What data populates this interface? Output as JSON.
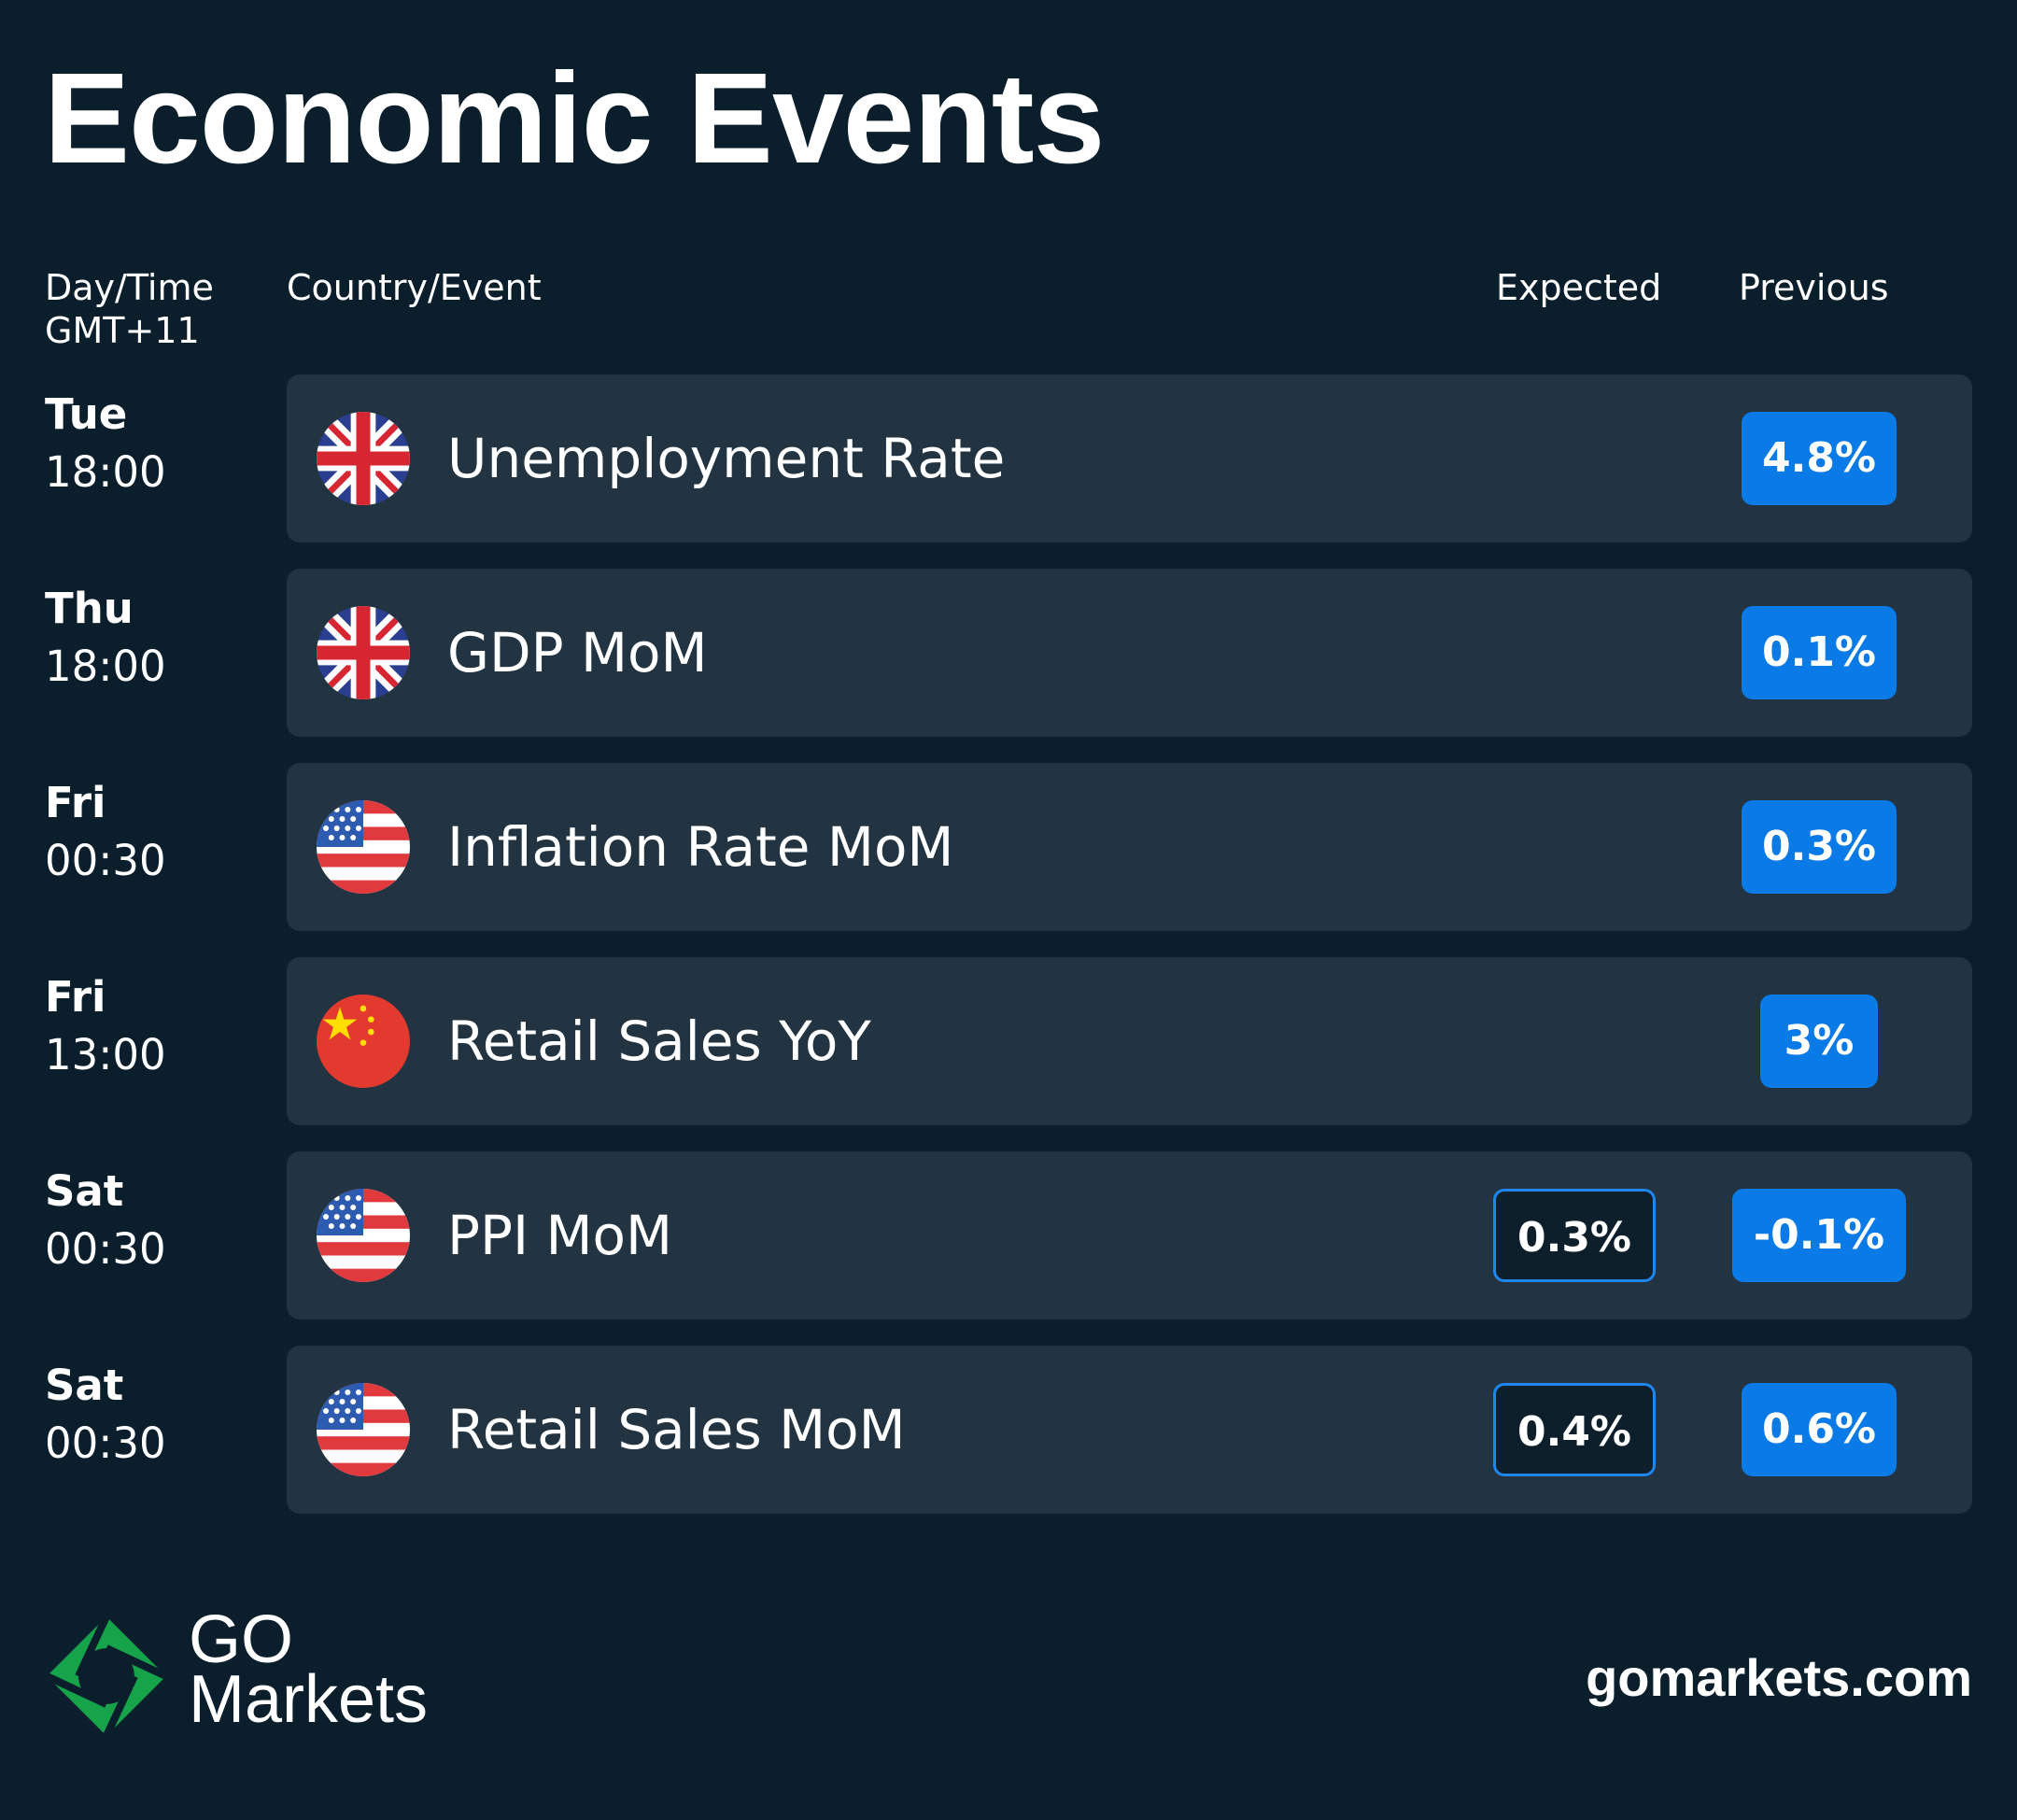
{
  "title": "Economic Events",
  "columns": {
    "day_time": "Day/Time",
    "timezone": "GMT+11",
    "country_event": "Country/Event",
    "expected": "Expected",
    "previous": "Previous"
  },
  "events": [
    {
      "day": "Tue",
      "time": "18:00",
      "flag": "uk-flag-icon",
      "event": "Unemployment Rate",
      "expected": "",
      "previous": "4.8%"
    },
    {
      "day": "Thu",
      "time": "18:00",
      "flag": "uk-flag-icon",
      "event": "GDP MoM",
      "expected": "",
      "previous": "0.1%"
    },
    {
      "day": "Fri",
      "time": "00:30",
      "flag": "us-flag-icon",
      "event": "Inflation Rate MoM",
      "expected": "",
      "previous": "0.3%"
    },
    {
      "day": "Fri",
      "time": "13:00",
      "flag": "china-flag-icon",
      "event": "Retail Sales YoY",
      "expected": "",
      "previous": "3%"
    },
    {
      "day": "Sat",
      "time": "00:30",
      "flag": "us-flag-icon",
      "event": "PPI MoM",
      "expected": "0.3%",
      "previous": "-0.1%"
    },
    {
      "day": "Sat",
      "time": "00:30",
      "flag": "us-flag-icon",
      "event": "Retail Sales MoM",
      "expected": "0.4%",
      "previous": "0.6%"
    }
  ],
  "colors": {
    "background": "#0b1e2c",
    "card": "#223341",
    "previous_pill": "#0a7ae6",
    "expected_border": "#1f86ee",
    "brand_green": "#16a34a"
  },
  "footer": {
    "logo_icon": "go-markets-logo-icon",
    "logo_line1": "GO",
    "logo_line2": "Markets",
    "website": "gomarkets.com"
  }
}
